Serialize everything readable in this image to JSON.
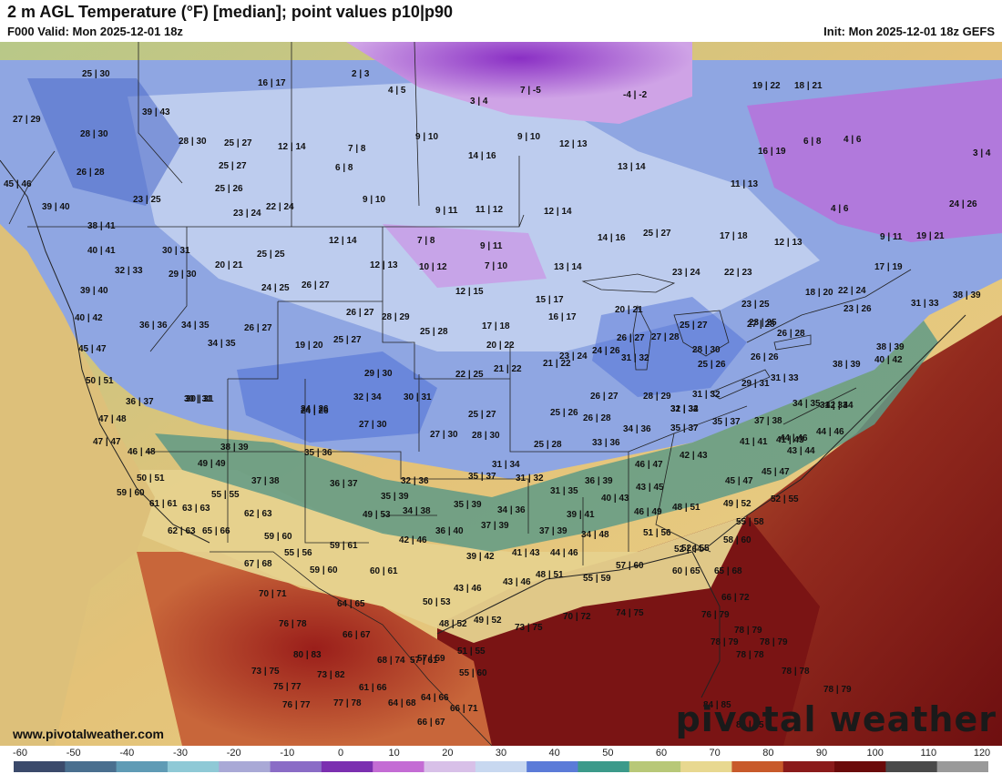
{
  "header": {
    "title": "2 m AGL Temperature (°F) [median]; point values p10|p90",
    "valid": "F000 Valid: Mon 2025-12-01 18z",
    "init": "Init: Mon 2025-12-01 18z GEFS"
  },
  "footer": {
    "site": "www.pivotalweather.com",
    "logo": "pivotal weather"
  },
  "legend": {
    "ticks": [
      "-60",
      "-50",
      "-40",
      "-30",
      "-20",
      "-10",
      "0",
      "10",
      "20",
      "30",
      "40",
      "50",
      "60",
      "70",
      "80",
      "90",
      "100",
      "110",
      "120"
    ],
    "colors": [
      "#3b4a6b",
      "#4a6f8f",
      "#5f9bb5",
      "#8fc9d6",
      "#a9a9d6",
      "#8a6cc6",
      "#7b2fb0",
      "#c46cd4",
      "#d8c0e8",
      "#c8d8f0",
      "#5b7bd8",
      "#3c9a8a",
      "#b8c878",
      "#e8d890",
      "#c85a2a",
      "#8a1a1a",
      "#6a0a0a",
      "#4a4a4a",
      "#9a9a9a"
    ]
  },
  "map_colors": {
    "ocean_pacific": "#e4c278",
    "ocean_atlantic": "#8e2a1e",
    "gulf": "#6e1010",
    "north_purple": "#a34bd0",
    "land_blue": "#8fa6e2",
    "border_line": "#222222"
  },
  "points": [
    "25|30",
    "16|17",
    "2|3",
    "4|5",
    "3|4",
    "7|-5",
    "-4|-2",
    "19|22",
    "18|21",
    "27|29",
    "39|43",
    "28|30",
    "28|30",
    "25|27",
    "12|14",
    "7|8",
    "9|10",
    "14|16",
    "9|10",
    "12|13",
    "13|14",
    "16|19",
    "6|8",
    "4|6",
    "26|28",
    "25|27",
    "6|8",
    "3|4",
    "45|46",
    "23|25",
    "25|26",
    "9|10",
    "11|13",
    "39|40",
    "23|24",
    "22|24",
    "9|11",
    "11|12",
    "12|14",
    "4|6",
    "24|26",
    "38|41",
    "40|41",
    "30|31",
    "12|14",
    "7|8",
    "9|11",
    "14|16",
    "25|27",
    "17|18",
    "12|13",
    "9|11",
    "19|21",
    "32|33",
    "20|21",
    "25|25",
    "12|13",
    "10|12",
    "7|10",
    "13|14",
    "23|24",
    "22|23",
    "17|19",
    "39|40",
    "29|30",
    "24|25",
    "26|27",
    "12|15",
    "15|17",
    "23|25",
    "18|20",
    "22|24",
    "31|33",
    "38|39",
    "40|42",
    "36|36",
    "34|35",
    "26|27",
    "26|27",
    "28|29",
    "17|18",
    "16|17",
    "20|21",
    "23|25",
    "23|26",
    "45|47",
    "34|35",
    "19|20",
    "25|27",
    "25|28",
    "20|22",
    "26|27",
    "27|28",
    "25|27",
    "27|28",
    "26|28",
    "38|39",
    "50|51",
    "30|31",
    "29|30",
    "22|25",
    "21|22",
    "21|22",
    "23|24",
    "24|26",
    "31|32",
    "28|30",
    "25|26",
    "26|26",
    "31|33",
    "40|42",
    "36|37",
    "30|31",
    "32|34",
    "30|31",
    "24|26",
    "26|27",
    "31|32",
    "29|31",
    "38|39",
    "47|48",
    "24|26",
    "25|27",
    "25|26",
    "26|28",
    "28|29",
    "31|32",
    "34|35",
    "31|33",
    "42|44",
    "47|47",
    "27|30",
    "27|30",
    "28|30",
    "34|36",
    "32|34",
    "35|37",
    "35|37",
    "37|38",
    "41|43",
    "44|46",
    "46|48",
    "38|39",
    "35|36",
    "25|28",
    "33|36",
    "41|41",
    "44|46",
    "43|44",
    "50|51",
    "49|49",
    "31|34",
    "36|39",
    "46|47",
    "42|43",
    "59|60",
    "55|55",
    "37|38",
    "36|37",
    "32|36",
    "35|37",
    "31|32",
    "31|35",
    "43|45",
    "45|47",
    "45|47",
    "61|61",
    "63|63",
    "35|39",
    "35|39",
    "40|43",
    "46|49",
    "48|51",
    "49|52",
    "52|55",
    "62|63",
    "65|66",
    "62|63",
    "49|53",
    "34|38",
    "34|36",
    "39|41",
    "51|56",
    "55|58",
    "59|60",
    "37|39",
    "36|40",
    "37|39",
    "34|48",
    "52|55",
    "58|60",
    "55|56",
    "59|61",
    "42|46",
    "39|42",
    "41|43",
    "44|46",
    "52|64",
    "67|68",
    "59|60",
    "60|61",
    "48|51",
    "55|59",
    "57|60",
    "60|65",
    "65|68",
    "70|71",
    "64|65",
    "43|46",
    "43|46",
    "50|53",
    "66|72",
    "76|78",
    "66|67",
    "48|52",
    "49|52",
    "73|75",
    "70|72",
    "74|75",
    "76|79",
    "80|83",
    "68|74",
    "57|61",
    "51|55",
    "78|79",
    "78|79",
    "78|79",
    "73|75",
    "73|82",
    "57|59",
    "55|60",
    "78|78",
    "78|78",
    "75|77",
    "61|66",
    "64|66",
    "78|79",
    "76|77",
    "77|78",
    "64|68",
    "66|71",
    "84|85",
    "66|67",
    "84|85"
  ]
}
